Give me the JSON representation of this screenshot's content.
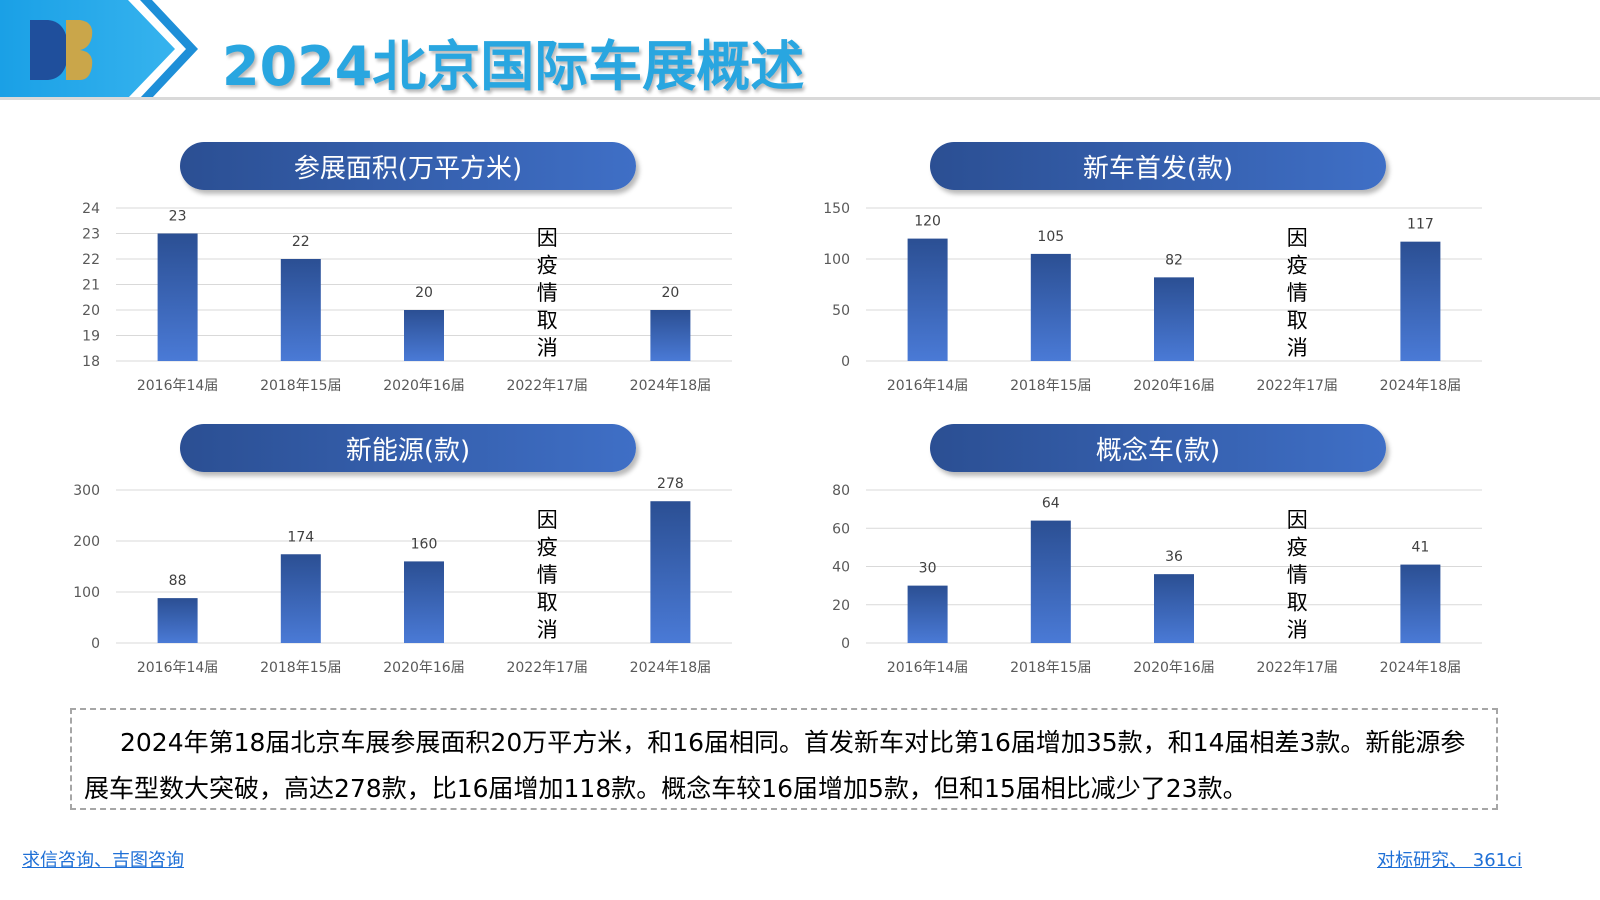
{
  "page": {
    "title": "2024北京国际车展概述",
    "summary": "2024年第18届北京车展参展面积20万平方米，和16届相同。首发新车对比第16届增加35款，和14届相差3款。新能源参展车型数大突破，高达278款，比16届增加118款。概念车较16届增加5款，但和15届相比减少了23款。",
    "footer_left": "求信咨询、吉图咨询",
    "footer_right": "对标研究、 361ci"
  },
  "colors": {
    "title": "#29a6e0",
    "bar_top": "#2b4f93",
    "bar_bottom": "#4a7ad6",
    "pill_left": "#2b4f93",
    "pill_right": "#3f6fc6",
    "link": "#1e6fd6"
  },
  "chart_data": [
    {
      "type": "bar",
      "title": "参展面积(万平方米)",
      "categories": [
        "2016年14届",
        "2018年15届",
        "2020年16届",
        "2022年17届",
        "2024年18届"
      ],
      "values": [
        23,
        22,
        20,
        null,
        20
      ],
      "ylim": [
        18,
        24
      ],
      "yticks": [
        18,
        19,
        20,
        21,
        22,
        23,
        24
      ],
      "annotation": "因疫情取消",
      "grid": true
    },
    {
      "type": "bar",
      "title": "新车首发(款)",
      "categories": [
        "2016年14届",
        "2018年15届",
        "2020年16届",
        "2022年17届",
        "2024年18届"
      ],
      "values": [
        120,
        105,
        82,
        null,
        117
      ],
      "ylim": [
        0,
        150
      ],
      "yticks": [
        0,
        50,
        100,
        150
      ],
      "annotation": "因疫情取消",
      "grid": true
    },
    {
      "type": "bar",
      "title": "新能源(款)",
      "categories": [
        "2016年14届",
        "2018年15届",
        "2020年16届",
        "2022年17届",
        "2024年18届"
      ],
      "values": [
        88,
        174,
        160,
        null,
        278
      ],
      "ylim": [
        0,
        300
      ],
      "yticks": [
        0,
        100,
        200,
        300
      ],
      "annotation": "因疫情取消",
      "grid": true
    },
    {
      "type": "bar",
      "title": "概念车(款)",
      "categories": [
        "2016年14届",
        "2018年15届",
        "2020年16届",
        "2022年17届",
        "2024年18届"
      ],
      "values": [
        30,
        64,
        36,
        null,
        41
      ],
      "ylim": [
        0,
        80
      ],
      "yticks": [
        0,
        20,
        40,
        60,
        80
      ],
      "annotation": "因疫情取消",
      "grid": true
    }
  ]
}
